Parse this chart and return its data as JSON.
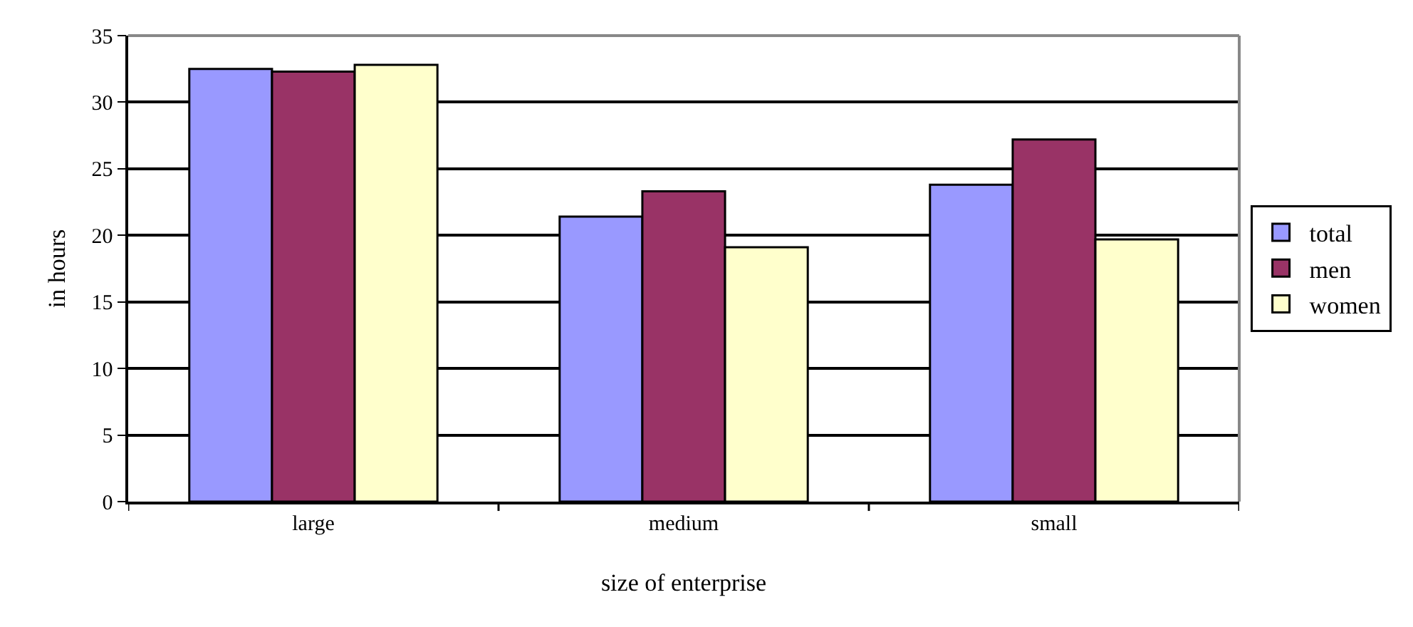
{
  "chart_data": {
    "type": "bar",
    "xlabel": "size of enterprise",
    "ylabel": "in hours",
    "categories": [
      "large",
      "medium",
      "small"
    ],
    "series": [
      {
        "name": "total",
        "color": "#9999ff",
        "values": [
          32.5,
          21.4,
          23.8
        ]
      },
      {
        "name": "men",
        "color": "#993366",
        "values": [
          32.3,
          23.3,
          27.2
        ]
      },
      {
        "name": "women",
        "color": "#ffffcc",
        "values": [
          32.8,
          19.1,
          19.7
        ]
      }
    ],
    "ylim": [
      0,
      35
    ],
    "yticks": [
      0,
      5,
      10,
      15,
      20,
      25,
      30,
      35
    ],
    "grid": "y",
    "legend": "right"
  }
}
